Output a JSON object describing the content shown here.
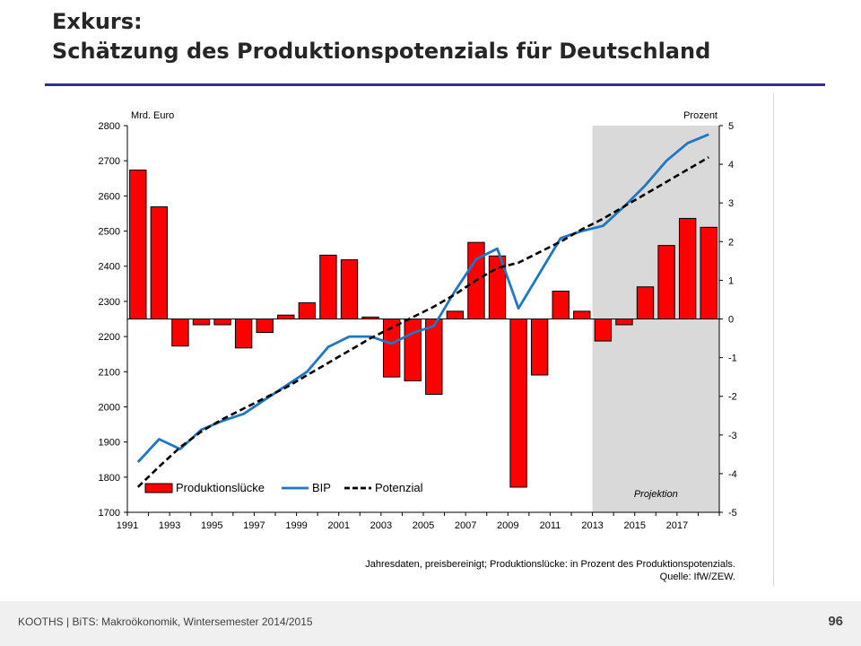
{
  "slide": {
    "title_line1": "Exkurs:",
    "title_line2": "Schätzung des Produktionspotenzials für Deutschland",
    "footer": "KOOTHS | BiTS: Makroökonomik, Wintersemester 2014/2015",
    "page_number": "96"
  },
  "chart_data": {
    "type": "bar+line",
    "left_axis": {
      "label": "Mrd. Euro",
      "min": 1700,
      "max": 2800,
      "ticks": [
        1700,
        1800,
        1900,
        2000,
        2100,
        2200,
        2300,
        2400,
        2500,
        2600,
        2700,
        2800
      ]
    },
    "right_axis": {
      "label": "Prozent",
      "min": -5,
      "max": 5,
      "ticks": [
        -5,
        -4,
        -3,
        -2,
        -1,
        0,
        1,
        2,
        3,
        4,
        5
      ]
    },
    "years": [
      1991,
      1992,
      1993,
      1994,
      1995,
      1996,
      1997,
      1998,
      1999,
      2000,
      2001,
      2002,
      2003,
      2004,
      2005,
      2006,
      2007,
      2008,
      2009,
      2010,
      2011,
      2012,
      2013,
      2014,
      2015,
      2016,
      2017,
      2018
    ],
    "x_tick_labels": [
      "1991",
      "1993",
      "1995",
      "1997",
      "1999",
      "2001",
      "2003",
      "2005",
      "2007",
      "2009",
      "2011",
      "2013",
      "2015",
      "2017"
    ],
    "projection_start": 2013,
    "projection_label": "Projektion",
    "series": [
      {
        "name": "Produktionslücke",
        "axis": "right",
        "kind": "bar",
        "color": "#ff0000",
        "values": [
          3.85,
          2.9,
          -0.7,
          -0.15,
          -0.15,
          -0.75,
          -0.35,
          0.1,
          0.42,
          1.65,
          1.53,
          0.05,
          -1.5,
          -1.6,
          -1.95,
          0.2,
          1.98,
          1.63,
          -4.35,
          -1.45,
          0.72,
          0.2,
          -0.57,
          -0.15,
          0.83,
          1.9,
          2.6,
          2.37
        ]
      },
      {
        "name": "BIP",
        "axis": "left",
        "kind": "line",
        "color": "#1f77c4",
        "values": [
          1843,
          1908,
          1880,
          1935,
          1960,
          1980,
          2020,
          2060,
          2100,
          2170,
          2200,
          2200,
          2180,
          2210,
          2230,
          2330,
          2420,
          2450,
          2280,
          2380,
          2480,
          2500,
          2515,
          2570,
          2630,
          2700,
          2750,
          2775
        ]
      },
      {
        "name": "Potenzial",
        "axis": "left",
        "kind": "line-dashed",
        "color": "#000000",
        "values": [
          1772,
          1830,
          1885,
          1930,
          1965,
          1995,
          2025,
          2055,
          2090,
          2125,
          2160,
          2195,
          2225,
          2255,
          2285,
          2320,
          2360,
          2395,
          2410,
          2440,
          2470,
          2505,
          2535,
          2570,
          2605,
          2640,
          2675,
          2710
        ]
      }
    ],
    "legend_position": "bottom-left",
    "note_line1": "Jahresdaten, preisbereinigt; Produktionslücke: in Prozent des Produktionspotenzials.",
    "note_line2": "Quelle: IfW/ZEW."
  }
}
